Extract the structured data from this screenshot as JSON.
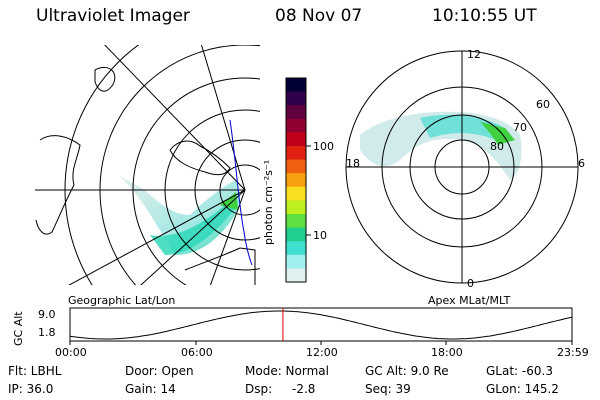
{
  "header": {
    "instrument": "Ultraviolet Imager",
    "date": "08 Nov 07",
    "time": "10:10:55 UT"
  },
  "geo_panel": {
    "label": "Geographic Lat/Lon"
  },
  "mag_panel": {
    "label": "Apex MLat/MLT",
    "mlt_labels": [
      "12",
      "18",
      "6",
      "0"
    ],
    "lat_labels": [
      "60",
      "70",
      "80"
    ]
  },
  "colorbar": {
    "unit_label": "photon cm⁻²s⁻¹",
    "ticks": [
      "100",
      "10"
    ],
    "colors": [
      "#000033",
      "#30004a",
      "#600040",
      "#900030",
      "#c0001a",
      "#e02010",
      "#f06010",
      "#f8a010",
      "#f8e020",
      "#c0f020",
      "#60e040",
      "#20d090",
      "#40e0d0",
      "#a0f0f0",
      "#e0f0f0"
    ]
  },
  "altitude_plot": {
    "y_label": "GC Alt",
    "y_ticks": [
      "9.0",
      "1.8"
    ],
    "x_ticks": [
      "00:00",
      "06:00",
      "12:00",
      "18:00",
      "23:59"
    ],
    "current_hour": 10.18
  },
  "info": {
    "filter": "Flt: LBHL",
    "door": "Door: Open",
    "mode": "Mode: Normal",
    "gc_alt": "GC Alt: 9.0 Re",
    "glat": "GLat: -60.3",
    "ip": "IP: 36.0",
    "gain": "Gain: 14",
    "dsp_label": "Dsp:",
    "dsp_value": "-2.8",
    "seq": "Seq: 39",
    "glon": "GLon: 145.2"
  }
}
